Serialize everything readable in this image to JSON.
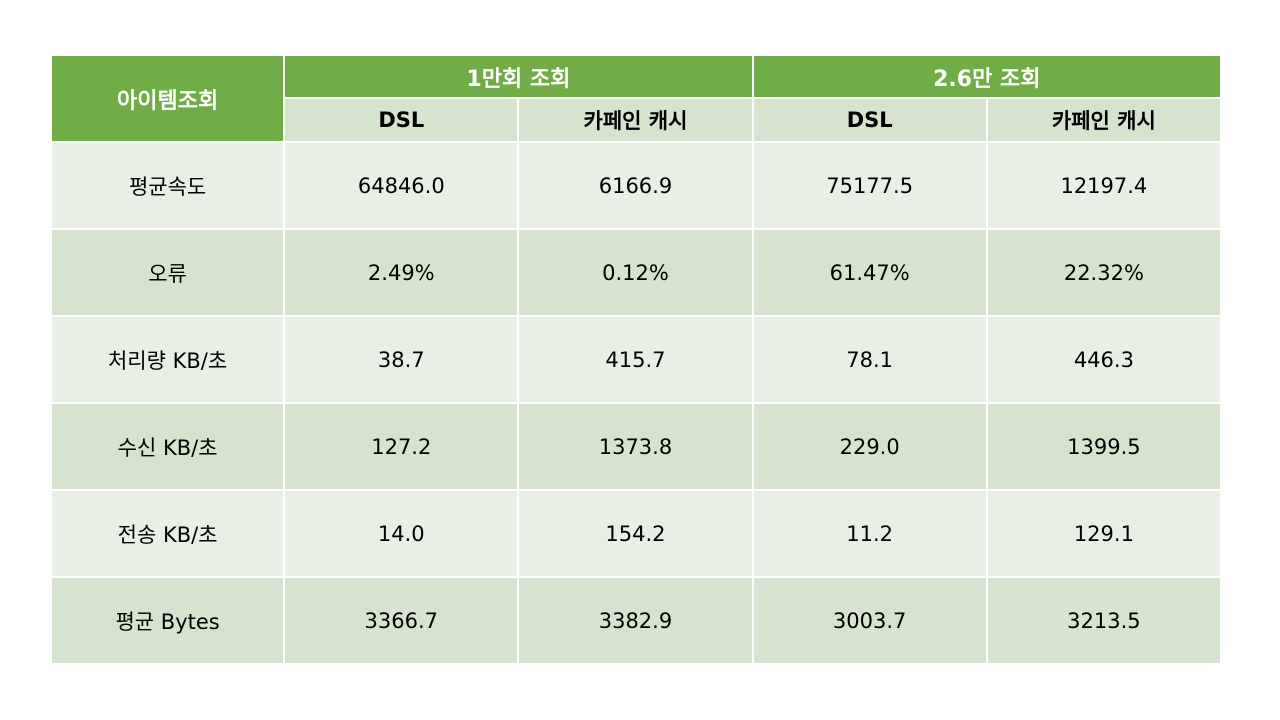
{
  "table": {
    "corner_header": "아이템조회",
    "group_headers": [
      "1만회 조회",
      "2.6만 조회"
    ],
    "sub_headers": [
      "DSL",
      "카페인 캐시",
      "DSL",
      "카페인 캐시"
    ],
    "rows": [
      {
        "label": "평균속도",
        "values": [
          "64846.0",
          "6166.9",
          "75177.5",
          "12197.4"
        ]
      },
      {
        "label": "오류",
        "values": [
          "2.49%",
          "0.12%",
          "61.47%",
          "22.32%"
        ]
      },
      {
        "label": "처리량 KB/초",
        "values": [
          "38.7",
          "415.7",
          "78.1",
          "446.3"
        ]
      },
      {
        "label": "수신 KB/초",
        "values": [
          "127.2",
          "1373.8",
          "229.0",
          "1399.5"
        ]
      },
      {
        "label": "전송 KB/초",
        "values": [
          "14.0",
          "154.2",
          "11.2",
          "129.1"
        ]
      },
      {
        "label": "평균 Bytes",
        "values": [
          "3366.7",
          "3382.9",
          "3003.7",
          "3213.5"
        ]
      }
    ]
  },
  "colors": {
    "header_green": "#70ad47",
    "row_dark": "#d6e3ce",
    "row_light": "#e9efe5"
  }
}
